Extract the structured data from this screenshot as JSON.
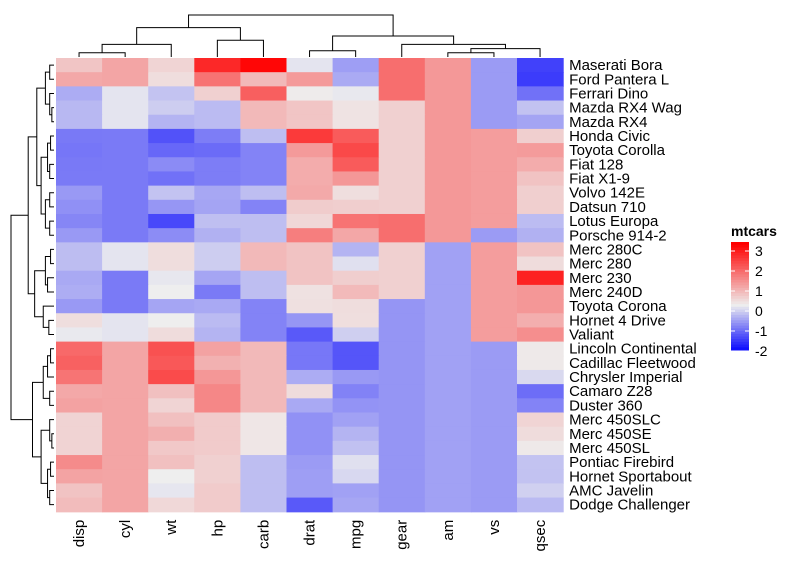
{
  "chart_data": {
    "type": "heatmap",
    "columns": [
      "disp",
      "cyl",
      "wt",
      "hp",
      "carb",
      "drat",
      "mpg",
      "gear",
      "am",
      "vs",
      "qsec"
    ],
    "rows": [
      "Maserati Bora",
      "Ford Pantera L",
      "Ferrari Dino",
      "Mazda RX4 Wag",
      "Mazda RX4",
      "Honda Civic",
      "Toyota Corolla",
      "Fiat 128",
      "Fiat X1-9",
      "Volvo 142E",
      "Datsun 710",
      "Lotus Europa",
      "Porsche 914-2",
      "Merc 280C",
      "Merc 280",
      "Merc 230",
      "Merc 240D",
      "Toyota Corona",
      "Hornet 4 Drive",
      "Valiant",
      "Lincoln Continental",
      "Cadillac Fleetwood",
      "Chrysler Imperial",
      "Camaro Z28",
      "Duster 360",
      "Merc 450SLC",
      "Merc 450SE",
      "Merc 450SL",
      "Pontiac Firebird",
      "Hornet Sportabout",
      "AMC Javelin",
      "Dodge Challenger"
    ],
    "values": [
      [
        0.57,
        1.01,
        0.36,
        2.75,
        3.21,
        -0.11,
        -0.84,
        1.78,
        1.19,
        -0.87,
        -1.82
      ],
      [
        0.97,
        1.01,
        0.23,
        1.71,
        0.73,
        1.16,
        -0.71,
        1.78,
        1.19,
        -0.87,
        -1.87
      ],
      [
        -0.69,
        -0.11,
        -0.45,
        0.41,
        1.98,
        0.04,
        -0.06,
        1.78,
        1.19,
        -0.87,
        -1.31
      ],
      [
        -0.57,
        -0.11,
        -0.35,
        -0.54,
        0.73,
        0.57,
        0.15,
        0.42,
        1.19,
        -0.87,
        -0.46
      ],
      [
        -0.57,
        -0.11,
        -0.61,
        -0.54,
        0.73,
        0.57,
        0.15,
        0.42,
        1.19,
        -0.87,
        -0.78
      ],
      [
        -1.23,
        -1.22,
        -1.64,
        -1.19,
        -0.5,
        2.49,
        2.04,
        0.42,
        1.19,
        1.12,
        0.43
      ],
      [
        -1.26,
        -1.22,
        -1.42,
        -1.38,
        -1.12,
        1.17,
        2.29,
        0.42,
        1.19,
        1.12,
        1.15
      ],
      [
        -1.23,
        -1.22,
        -1.04,
        -1.19,
        -1.12,
        0.91,
        2.04,
        0.42,
        1.19,
        1.12,
        0.91
      ],
      [
        -1.22,
        -1.22,
        -1.31,
        -1.19,
        -1.12,
        0.91,
        1.2,
        0.42,
        1.19,
        1.12,
        0.59
      ],
      [
        -0.89,
        -1.22,
        -0.45,
        -0.75,
        -0.5,
        0.96,
        0.22,
        0.42,
        1.19,
        1.12,
        0.43
      ],
      [
        -0.99,
        -1.22,
        -0.92,
        -0.78,
        -1.12,
        0.47,
        0.45,
        0.42,
        1.19,
        1.12,
        0.43
      ],
      [
        -1.09,
        -1.22,
        -1.74,
        -0.49,
        -0.5,
        0.32,
        1.71,
        1.78,
        1.19,
        1.12,
        -0.53
      ],
      [
        -0.89,
        -1.22,
        -1.03,
        -0.64,
        -0.5,
        1.55,
        0.98,
        1.78,
        1.19,
        -0.87,
        -0.64
      ],
      [
        -0.51,
        -0.11,
        0.23,
        -0.35,
        0.73,
        0.6,
        -0.61,
        0.42,
        -0.81,
        1.12,
        0.59
      ],
      [
        -0.51,
        -0.11,
        0.23,
        -0.35,
        0.73,
        0.6,
        -0.15,
        0.42,
        -0.81,
        1.12,
        0.25
      ],
      [
        -0.73,
        -1.22,
        -0.07,
        -0.77,
        -0.5,
        0.6,
        0.45,
        0.42,
        -0.81,
        1.12,
        2.83
      ],
      [
        -0.68,
        -1.22,
        -0.0,
        -1.22,
        -0.5,
        0.18,
        0.72,
        0.42,
        -0.81,
        1.12,
        1.2
      ],
      [
        -0.89,
        -1.22,
        -0.77,
        -0.73,
        -1.12,
        0.19,
        0.23,
        -0.93,
        -0.81,
        1.12,
        1.2
      ],
      [
        0.22,
        -0.11,
        -0.0,
        -0.54,
        -1.12,
        -0.92,
        0.22,
        -0.93,
        -0.81,
        1.12,
        0.89
      ],
      [
        -0.05,
        -0.11,
        0.25,
        -0.61,
        -1.12,
        -1.56,
        -0.33,
        -0.93,
        -0.81,
        1.12,
        1.33
      ],
      [
        1.85,
        1.01,
        2.17,
        1.06,
        0.73,
        -1.25,
        -1.61,
        -0.93,
        -0.81,
        -0.87,
        0.07
      ],
      [
        1.95,
        1.01,
        2.08,
        0.85,
        0.73,
        -1.25,
        -1.61,
        -0.93,
        -0.81,
        -0.87,
        0.07
      ],
      [
        1.69,
        1.01,
        2.26,
        1.21,
        0.73,
        -0.69,
        -0.89,
        -0.93,
        -0.81,
        -0.87,
        -0.22
      ],
      [
        0.97,
        1.01,
        0.64,
        1.43,
        0.73,
        0.25,
        -1.13,
        -0.93,
        -0.81,
        -0.87,
        -1.36
      ],
      [
        1.05,
        1.01,
        0.36,
        1.43,
        0.73,
        -0.72,
        -0.96,
        -0.93,
        -0.81,
        -0.87,
        -1.12
      ],
      [
        0.37,
        1.01,
        0.64,
        0.49,
        0.11,
        -0.98,
        -0.81,
        -0.93,
        -0.81,
        -0.87,
        0.36
      ],
      [
        0.37,
        1.01,
        0.87,
        0.49,
        0.11,
        -0.98,
        -0.61,
        -0.93,
        -0.81,
        -0.87,
        0.25
      ],
      [
        0.37,
        1.01,
        0.52,
        0.49,
        0.11,
        -0.98,
        -0.47,
        -0.93,
        -0.81,
        -0.87,
        0.07
      ],
      [
        1.37,
        1.01,
        0.64,
        0.41,
        -0.5,
        -0.87,
        -0.15,
        -0.93,
        -0.81,
        -0.87,
        -0.45
      ],
      [
        1.04,
        1.01,
        -0.0,
        0.41,
        -0.5,
        -0.84,
        -0.23,
        -0.93,
        -0.81,
        -0.87,
        -0.46
      ],
      [
        0.59,
        1.01,
        -0.08,
        0.49,
        -0.5,
        -0.84,
        -0.81,
        -0.93,
        -0.81,
        -0.87,
        -0.31
      ],
      [
        0.7,
        1.01,
        0.31,
        0.49,
        -0.5,
        -1.56,
        -0.76,
        -0.93,
        -0.81,
        -0.87,
        -0.55
      ]
    ],
    "legend": {
      "title": "mtcars",
      "ticks": [
        "3",
        "2",
        "1",
        "0",
        "-1",
        "-2"
      ],
      "tick_values": [
        3,
        2,
        1,
        0,
        -1,
        -2
      ],
      "position": "right"
    },
    "color_scale": {
      "min_value": -2.5,
      "mid_value": 0,
      "max_value": 3.3,
      "low_color": "#0000ff",
      "mid_color": "#eeeeee",
      "high_color": "#ff0000"
    },
    "dendrograms": {
      "row": true,
      "column": true
    }
  }
}
